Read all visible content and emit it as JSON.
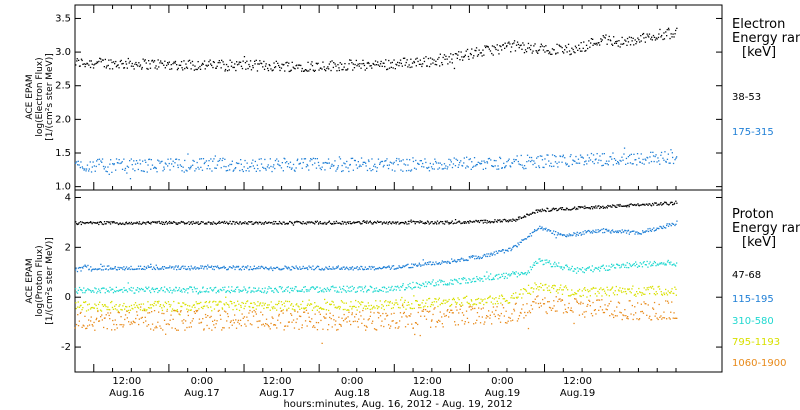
{
  "chart_data": [
    {
      "type": "scatter",
      "panel": "electron",
      "ylabel": [
        "ACE EPAM",
        "log(Electron Flux)",
        "[1/(cm²s ster MeV)]"
      ],
      "ylim": [
        0.95,
        3.7
      ],
      "yticks": [
        "1.0",
        "1.5",
        "2.0",
        "2.5",
        "3.0",
        "3.5"
      ],
      "ytick_values": [
        1.0,
        1.5,
        2.0,
        2.5,
        3.0,
        3.5
      ],
      "xlim_hours": [
        0,
        96
      ],
      "legend_title": [
        "Electron",
        "Energy ran",
        "[keV]"
      ],
      "series": [
        {
          "name": "38-53",
          "color": "#000000",
          "base": [
            [
              0,
              2.85
            ],
            [
              18,
              2.82
            ],
            [
              36,
              2.8
            ],
            [
              48,
              2.82
            ],
            [
              58,
              2.88
            ],
            [
              64,
              3.0
            ],
            [
              70,
              3.1
            ],
            [
              74,
              3.05
            ],
            [
              80,
              3.05
            ],
            [
              84,
              3.2
            ],
            [
              88,
              3.15
            ],
            [
              92,
              3.25
            ],
            [
              96,
              3.3
            ]
          ],
          "spread": 0.08
        },
        {
          "name": "175-315",
          "color": "#1f7fd6",
          "base": [
            [
              0,
              1.32
            ],
            [
              30,
              1.33
            ],
            [
              60,
              1.34
            ],
            [
              80,
              1.4
            ],
            [
              96,
              1.45
            ]
          ],
          "spread": 0.1
        }
      ]
    },
    {
      "type": "scatter",
      "panel": "proton",
      "ylabel": [
        "ACE EPAM",
        "log(Proton Flux)",
        "[1/(cm²s ster MeV)]"
      ],
      "ylim": [
        -3.0,
        4.3
      ],
      "yticks": [
        "-2",
        "0",
        "2",
        "4"
      ],
      "ytick_values": [
        -2,
        0,
        2,
        4
      ],
      "xlim_hours": [
        0,
        96
      ],
      "legend_title": [
        "Proton",
        "Energy ran",
        "[keV]"
      ],
      "series": [
        {
          "name": "47-68",
          "color": "#000000",
          "base": [
            [
              0,
              3.0
            ],
            [
              60,
              3.02
            ],
            [
              70,
              3.1
            ],
            [
              74,
              3.5
            ],
            [
              80,
              3.6
            ],
            [
              96,
              3.8
            ]
          ],
          "spread": 0.06
        },
        {
          "name": "115-195",
          "color": "#1f7fd6",
          "base": [
            [
              0,
              1.2
            ],
            [
              50,
              1.2
            ],
            [
              58,
              1.4
            ],
            [
              66,
              1.7
            ],
            [
              70,
              2.0
            ],
            [
              74,
              2.8
            ],
            [
              78,
              2.5
            ],
            [
              84,
              2.7
            ],
            [
              90,
              2.6
            ],
            [
              96,
              3.0
            ]
          ],
          "spread": 0.08
        },
        {
          "name": "310-580",
          "color": "#20d8d0",
          "base": [
            [
              0,
              0.3
            ],
            [
              50,
              0.35
            ],
            [
              58,
              0.6
            ],
            [
              66,
              0.8
            ],
            [
              72,
              1.0
            ],
            [
              74,
              1.5
            ],
            [
              80,
              1.1
            ],
            [
              88,
              1.3
            ],
            [
              96,
              1.4
            ]
          ],
          "spread": 0.12
        },
        {
          "name": "795-1193",
          "color": "#d8e000",
          "base": [
            [
              0,
              -0.35
            ],
            [
              50,
              -0.3
            ],
            [
              70,
              0.0
            ],
            [
              74,
              0.5
            ],
            [
              80,
              0.2
            ],
            [
              88,
              0.3
            ],
            [
              96,
              0.25
            ]
          ],
          "spread": 0.2
        },
        {
          "name": "1060-1900",
          "color": "#e88a1a",
          "base": [
            [
              0,
              -0.9
            ],
            [
              50,
              -0.9
            ],
            [
              70,
              -0.6
            ],
            [
              74,
              -0.2
            ],
            [
              80,
              -0.4
            ],
            [
              88,
              -0.5
            ],
            [
              96,
              -0.5
            ]
          ],
          "spread": 0.4
        }
      ]
    }
  ],
  "x_axis": {
    "ticks": [
      {
        "h": 3,
        "time": "12:00",
        "date": "Aug.16"
      },
      {
        "h": 15,
        "time": "0:00",
        "date": "Aug.17"
      },
      {
        "h": 27,
        "time": "12:00",
        "date": "Aug.17"
      },
      {
        "h": 39,
        "time": "0:00",
        "date": "Aug.18"
      },
      {
        "h": 51,
        "time": "12:00",
        "date": "Aug.18"
      },
      {
        "h": 63,
        "time": "0:00",
        "date": "Aug.19"
      },
      {
        "h": 75,
        "time": "12:00",
        "date": "Aug.19"
      }
    ],
    "xlabel": "hours:minutes, Aug. 16, 2012 - Aug. 19, 2012"
  },
  "colors": {
    "black": "#000000",
    "blue": "#1f7fd6",
    "cyan": "#20d8d0",
    "yellow": "#d8e000",
    "orange": "#e88a1a"
  }
}
